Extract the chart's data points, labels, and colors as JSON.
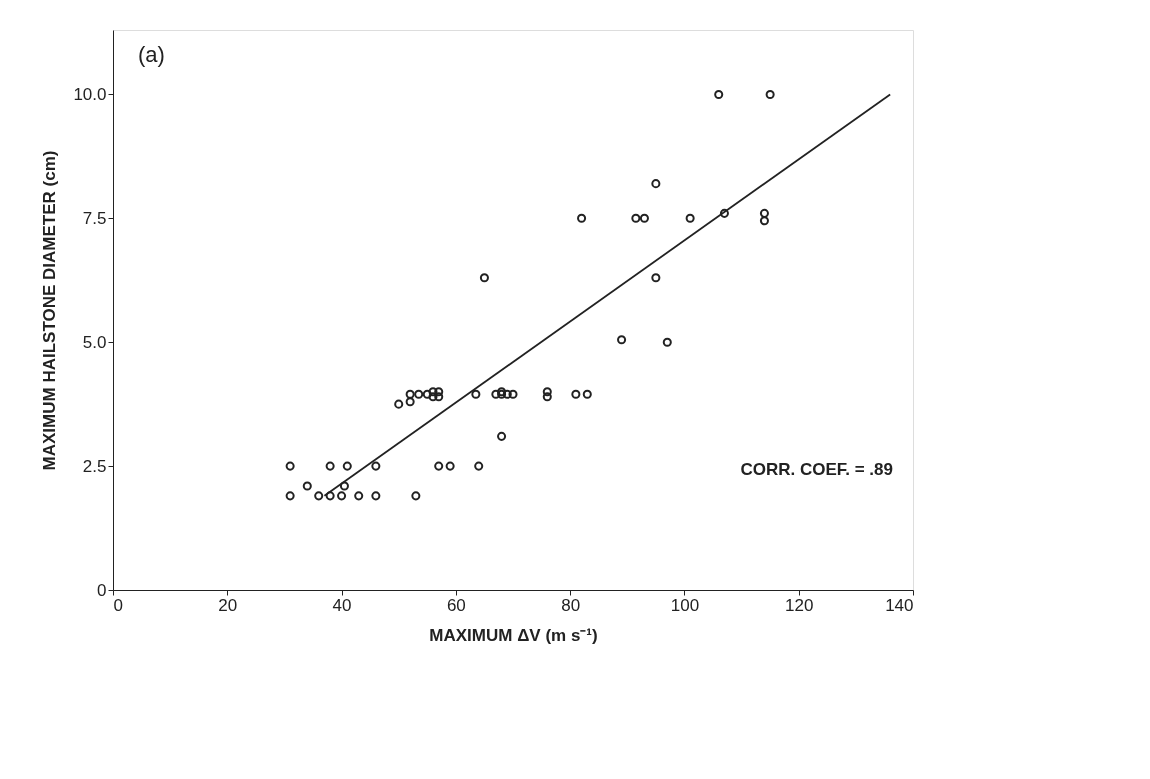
{
  "chart_data": {
    "type": "scatter",
    "xlabel": "MAXIMUM ΔV (m s⁻¹)",
    "ylabel": "MAXIMUM HAILSTONE DIAMETER (cm)",
    "annotations": [
      "(a)",
      "CORR. COEF. = .89"
    ],
    "xlim": [
      0,
      140
    ],
    "ylim": [
      0,
      11.3
    ],
    "xticks": [
      0,
      20,
      40,
      60,
      80,
      100,
      120,
      140
    ],
    "yticks": [
      0,
      {
        "value": 2.5,
        "label": "2.5"
      },
      {
        "value": 5,
        "label": "5.0"
      },
      {
        "value": 7.5,
        "label": "7.5"
      },
      {
        "value": 10,
        "label": "10.0"
      }
    ],
    "grid": false,
    "series": [
      {
        "color": "#222222",
        "marker": "circle",
        "x": [
          31,
          31,
          34,
          36,
          38,
          38,
          40,
          40.5,
          41,
          43,
          46,
          46,
          53,
          57,
          59,
          64,
          50,
          52,
          52,
          53.5,
          55,
          56,
          56,
          57,
          57,
          63.5,
          65,
          67,
          68,
          68,
          69,
          70,
          68,
          76,
          76,
          81,
          83,
          82,
          89,
          91.5,
          93,
          95,
          95,
          97,
          101,
          106,
          107,
          114,
          114,
          115
        ],
        "values": [
          2.5,
          1.9,
          2.1,
          1.9,
          1.9,
          2.5,
          1.9,
          2.1,
          2.5,
          1.9,
          2.5,
          1.9,
          1.9,
          2.5,
          2.5,
          2.5,
          3.75,
          3.8,
          3.95,
          3.95,
          3.95,
          4.0,
          3.9,
          4.0,
          3.9,
          3.95,
          6.3,
          3.95,
          4.0,
          3.95,
          3.95,
          3.95,
          3.1,
          4.0,
          3.9,
          3.95,
          3.95,
          7.5,
          5.05,
          7.5,
          7.5,
          8.2,
          6.3,
          5.0,
          7.5,
          10.0,
          7.6,
          7.6,
          7.45,
          10.0
        ]
      },
      {
        "type": "line",
        "color": "#222222",
        "x": [
          37,
          136
        ],
        "values": [
          1.9,
          10.0
        ]
      }
    ]
  }
}
